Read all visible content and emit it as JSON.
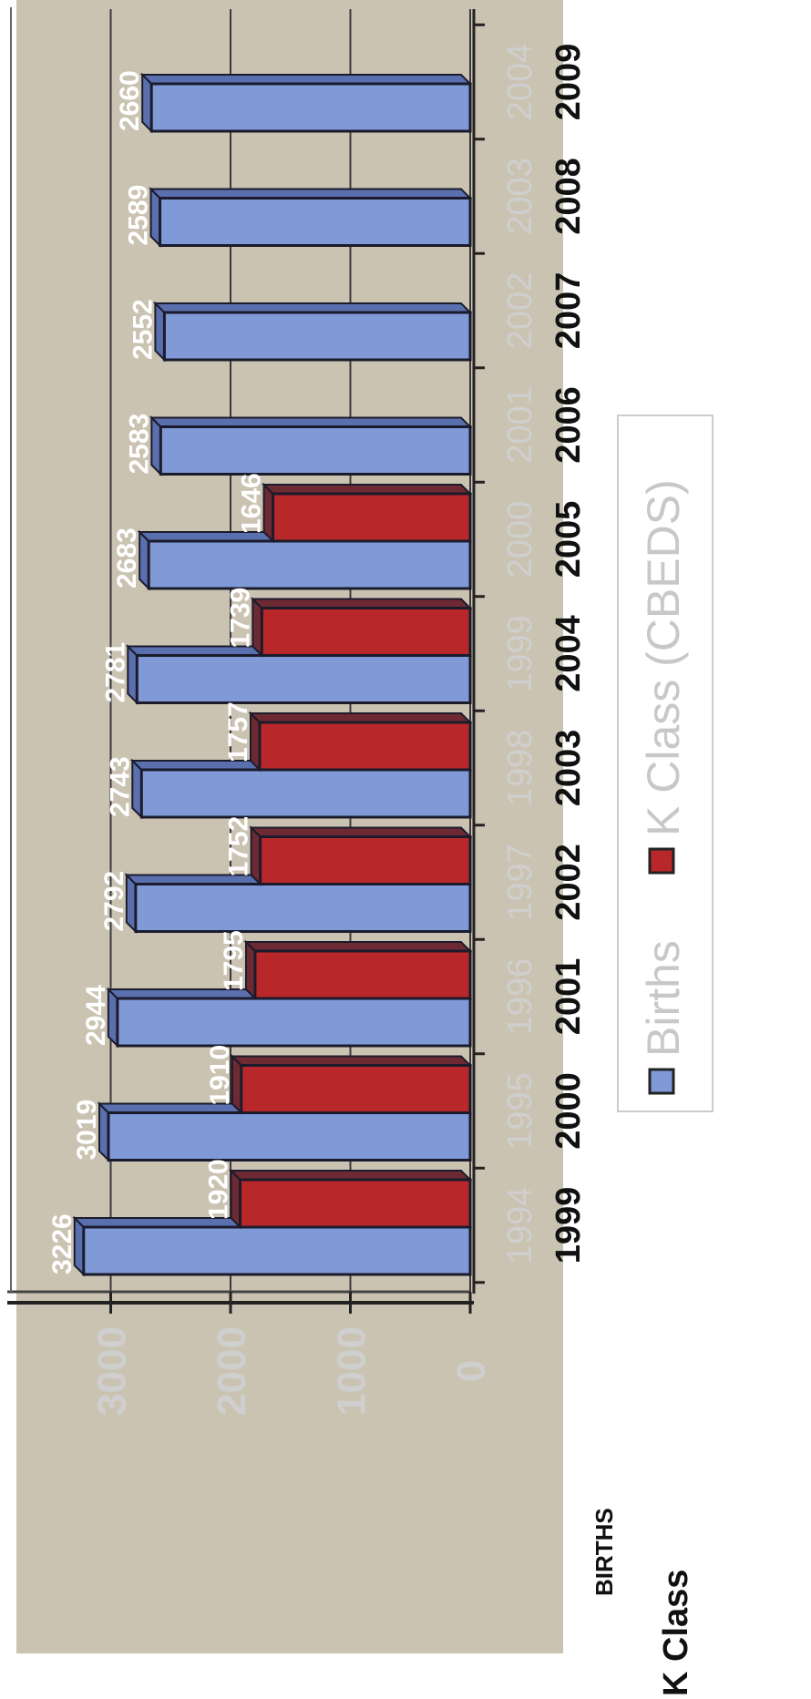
{
  "chart_data": {
    "type": "bar",
    "orientation": "rotated-90",
    "title": "",
    "xlabel": "",
    "ylabel": "",
    "ylim": [
      0,
      3300
    ],
    "yticks": [
      "0",
      "1000",
      "2000",
      "3000"
    ],
    "grid": true,
    "legend_position": "right",
    "row_labels": {
      "births_row_label": "BIRTHS",
      "kclass_row_label": "K Class"
    },
    "categories_births": [
      "1994",
      "1995",
      "1996",
      "1997",
      "1998",
      "1999",
      "2000",
      "2001",
      "2002",
      "2003",
      "2004"
    ],
    "categories_kclass": [
      "1999",
      "2000",
      "2001",
      "2002",
      "2003",
      "2004",
      "2005",
      "2006",
      "2007",
      "2008",
      "2009"
    ],
    "series": [
      {
        "name": "Births",
        "color": "#7f9ad6",
        "values": [
          3226,
          3019,
          2944,
          2792,
          2743,
          2781,
          2683,
          2583,
          2552,
          2589,
          2660
        ],
        "labels": [
          "3226",
          "3019",
          "2944",
          "2792",
          "2743",
          "2781",
          "2683",
          "2583",
          "2552",
          "2589",
          "2660"
        ]
      },
      {
        "name": "K Class (CBEDS)",
        "color": "#b8282a",
        "values": [
          1920,
          1910,
          1795,
          1752,
          1757,
          1739,
          1646,
          null,
          null,
          null,
          null
        ],
        "labels": [
          "1920",
          "1910",
          "1795",
          "1752",
          "1757",
          "1739",
          "1646",
          "",
          "",
          "",
          ""
        ]
      }
    ]
  },
  "colors": {
    "plot_background": "#cbc3b2",
    "gridline": "#3a3a3a",
    "births_fill": "#7f9ad6",
    "births_side": "#5a6fae",
    "kclass_fill": "#b8282a",
    "kclass_side": "#6e2a33",
    "axis_text_light": "#cfcfcf",
    "axis_text_dark": "#111111"
  }
}
